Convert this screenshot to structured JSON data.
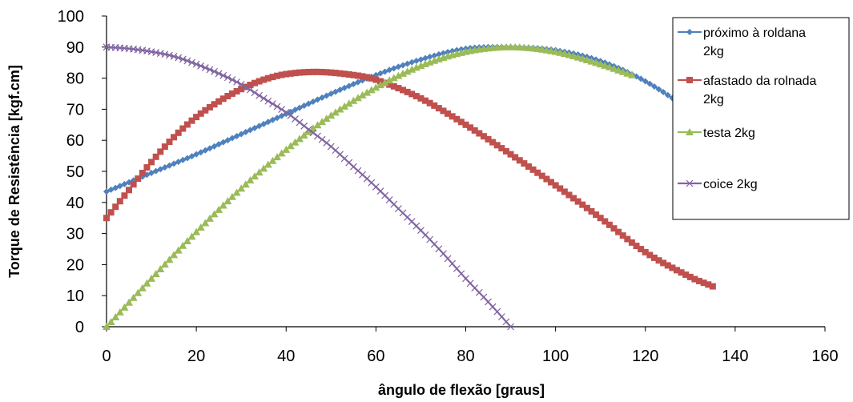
{
  "chart_data": {
    "type": "line",
    "title": "",
    "xlabel": "ângulo de flexão [graus]",
    "ylabel": "Torque de Resistência [kgf.cm]",
    "xlim": [
      0,
      160
    ],
    "ylim": [
      0,
      100
    ],
    "x_ticks": [
      "0",
      "20",
      "40",
      "60",
      "80",
      "100",
      "120",
      "140",
      "160"
    ],
    "y_ticks": [
      "0",
      "10",
      "20",
      "30",
      "40",
      "50",
      "60",
      "70",
      "80",
      "90",
      "100"
    ],
    "grid": false,
    "legend_position": "right",
    "series": [
      {
        "name_lines": [
          "próximo à roldana",
          "2kg"
        ],
        "color": "#4f81bd",
        "marker": "diamond",
        "x": [
          0,
          10,
          20,
          30,
          40,
          50,
          60,
          70,
          80,
          90,
          100,
          110,
          120,
          130,
          140
        ],
        "y": [
          43.5,
          49.5,
          55.5,
          62,
          68.5,
          75,
          81,
          86,
          89.5,
          90,
          89,
          85.5,
          79,
          69.5,
          58
        ]
      },
      {
        "name_lines": [
          "afastado da rolnada",
          "2kg"
        ],
        "color": "#c0504d",
        "marker": "square",
        "x": [
          0,
          5,
          10,
          15,
          20,
          25,
          30,
          35,
          40,
          47,
          55,
          60,
          70,
          80,
          90,
          100,
          110,
          120,
          130,
          135
        ],
        "y": [
          35,
          44,
          53,
          61,
          67.5,
          72.5,
          76.5,
          79.5,
          81.3,
          82,
          81,
          79.5,
          73.5,
          65,
          55.5,
          45.5,
          35,
          24,
          16,
          13
        ]
      },
      {
        "name_lines": [
          "testa 2kg"
        ],
        "color": "#9bbb59",
        "marker": "triangle",
        "x": [
          0,
          10,
          20,
          30,
          40,
          50,
          60,
          70,
          80,
          90,
          100,
          110,
          117
        ],
        "y": [
          0,
          15.5,
          30.5,
          44.5,
          57,
          68,
          77,
          84,
          88.5,
          90,
          88.5,
          84.5,
          81
        ]
      },
      {
        "name_lines": [
          "coice 2kg"
        ],
        "color": "#8064a2",
        "marker": "x",
        "x": [
          0,
          5,
          10,
          15,
          20,
          25,
          30,
          35,
          40,
          45,
          50,
          55,
          60,
          65,
          70,
          75,
          80,
          85,
          90
        ],
        "y": [
          90,
          89.5,
          88.5,
          87,
          84.5,
          81.5,
          78,
          73.5,
          69,
          63.5,
          58,
          51.5,
          45,
          38,
          31,
          23.5,
          15.5,
          8,
          0
        ]
      }
    ]
  }
}
